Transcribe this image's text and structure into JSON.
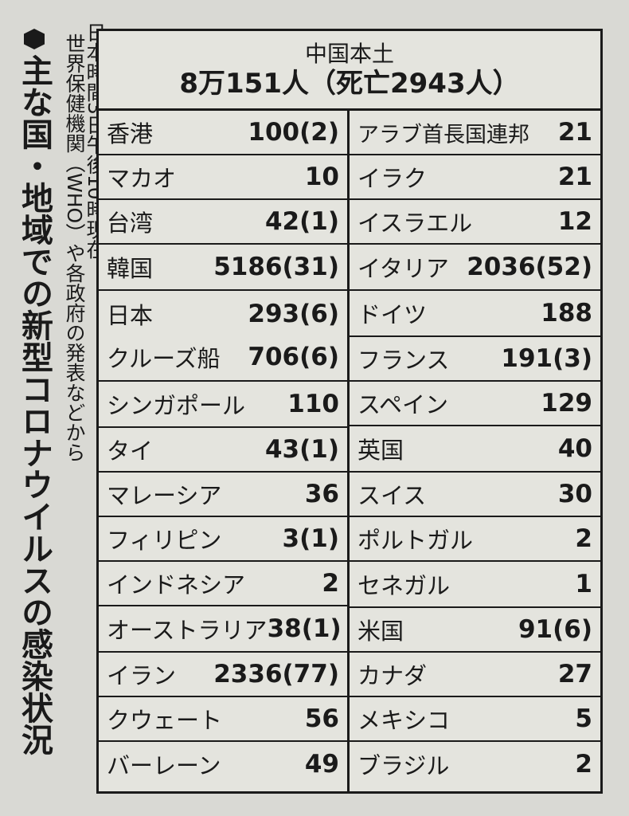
{
  "title": "主な国・地域での新型コロナウイルスの感染状況",
  "source_lines": [
    "日本時間3日午後10時現在",
    "世界保健機関（WHO）や各政府の発表などから"
  ],
  "header": {
    "region": "中国本土",
    "figure": "8万151人（死亡2943人）"
  },
  "left": [
    {
      "name": "香港",
      "value": "100(2)"
    },
    {
      "name": "マカオ",
      "value": "10"
    },
    {
      "name": "台湾",
      "value": "42(1)"
    },
    {
      "name": "韓国",
      "value": "5186(31)"
    },
    {
      "name": "日本",
      "value": "293(6)",
      "name2": "クルーズ船",
      "value2": "706(6)"
    },
    {
      "name": "シンガポール",
      "value": "110"
    },
    {
      "name": "タイ",
      "value": "43(1)"
    },
    {
      "name": "マレーシア",
      "value": "36"
    },
    {
      "name": "フィリピン",
      "value": "3(1)"
    },
    {
      "name": "インドネシア",
      "value": "2"
    },
    {
      "name": "オーストラリア",
      "value": "38(1)"
    },
    {
      "name": "イラン",
      "value": "2336(77)"
    },
    {
      "name": "クウェート",
      "value": "56"
    },
    {
      "name": "バーレーン",
      "value": "49"
    }
  ],
  "right": [
    {
      "name": "アラブ首長国連邦",
      "value": "21"
    },
    {
      "name": "イラク",
      "value": "21"
    },
    {
      "name": "イスラエル",
      "value": "12"
    },
    {
      "name": "イタリア",
      "value": "2036(52)"
    },
    {
      "name": "ドイツ",
      "value": "188"
    },
    {
      "name": "フランス",
      "value": "191(3)"
    },
    {
      "name": "スペイン",
      "value": "129"
    },
    {
      "name": "英国",
      "value": "40"
    },
    {
      "name": "スイス",
      "value": "30"
    },
    {
      "name": "ポルトガル",
      "value": "2"
    },
    {
      "name": "セネガル",
      "value": "1"
    },
    {
      "name": "米国",
      "value": "91(6)"
    },
    {
      "name": "カナダ",
      "value": "27"
    },
    {
      "name": "メキシコ",
      "value": "5"
    },
    {
      "name": "ブラジル",
      "value": "2"
    }
  ]
}
